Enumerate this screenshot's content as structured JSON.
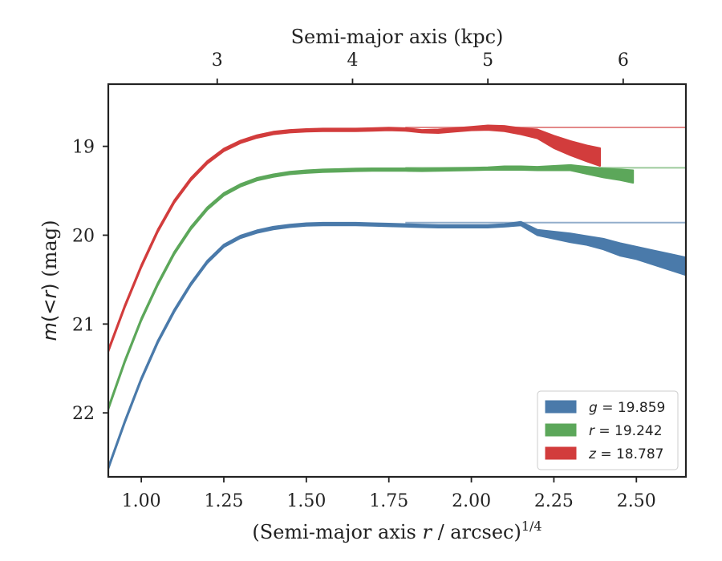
{
  "chart_data": {
    "type": "area",
    "xlabel_prefix": "(Semi-major axis ",
    "xlabel_var": "r",
    "xlabel_mid": " / arcsec)",
    "xlabel_sup": "1/4",
    "top_xlabel": "Semi-major axis (kpc)",
    "ylabel_var": "m",
    "ylabel_paren_open": "(<",
    "ylabel_var2": "r",
    "ylabel_paren_close": ")",
    "ylabel_unit": " (mag)",
    "xlim": [
      0.9,
      2.65
    ],
    "ylim": [
      22.72,
      18.3
    ],
    "y_inverted": true,
    "x_ticks": [
      "1.00",
      "1.25",
      "1.50",
      "1.75",
      "2.00",
      "2.25",
      "2.50"
    ],
    "x_tick_values": [
      1.0,
      1.25,
      1.5,
      1.75,
      2.0,
      2.25,
      2.5
    ],
    "y_ticks": [
      "19",
      "20",
      "21",
      "22"
    ],
    "y_tick_values": [
      19,
      20,
      21,
      22
    ],
    "top_ticks": [
      "3",
      "4",
      "5",
      "6"
    ],
    "top_tick_positions_x": [
      1.23,
      1.64,
      2.05,
      2.46
    ],
    "legend_position": "lower-right",
    "series": [
      {
        "band": "g",
        "value_text": "19.859",
        "color": "#4a7aaa",
        "total_mag": 19.859,
        "x": [
          0.9,
          0.95,
          1.0,
          1.05,
          1.1,
          1.15,
          1.2,
          1.25,
          1.3,
          1.35,
          1.4,
          1.45,
          1.5,
          1.55,
          1.6,
          1.65,
          1.7,
          1.75,
          1.8,
          1.85,
          1.9,
          1.95,
          2.0,
          2.05,
          2.1,
          2.15,
          2.2,
          2.25,
          2.3,
          2.35,
          2.4,
          2.45,
          2.5,
          2.55,
          2.6,
          2.65
        ],
        "y": [
          22.62,
          22.1,
          21.62,
          21.2,
          20.85,
          20.55,
          20.3,
          20.12,
          20.02,
          19.96,
          19.92,
          19.895,
          19.88,
          19.875,
          19.875,
          19.875,
          19.88,
          19.885,
          19.89,
          19.895,
          19.9,
          19.9,
          19.9,
          19.9,
          19.89,
          19.87,
          19.97,
          20.0,
          20.03,
          20.06,
          20.1,
          20.16,
          20.2,
          20.25,
          20.3,
          20.35
        ],
        "halfwidth": [
          0.015,
          0.015,
          0.015,
          0.015,
          0.015,
          0.015,
          0.015,
          0.015,
          0.015,
          0.015,
          0.015,
          0.015,
          0.015,
          0.015,
          0.015,
          0.015,
          0.015,
          0.015,
          0.015,
          0.015,
          0.015,
          0.015,
          0.015,
          0.015,
          0.015,
          0.02,
          0.03,
          0.04,
          0.05,
          0.05,
          0.06,
          0.07,
          0.07,
          0.08,
          0.09,
          0.1
        ]
      },
      {
        "band": "r",
        "value_text": "19.242",
        "color": "#5ca75a",
        "total_mag": 19.242,
        "x": [
          0.9,
          0.95,
          1.0,
          1.05,
          1.1,
          1.15,
          1.2,
          1.25,
          1.3,
          1.35,
          1.4,
          1.45,
          1.5,
          1.55,
          1.6,
          1.65,
          1.7,
          1.75,
          1.8,
          1.85,
          1.9,
          1.95,
          2.0,
          2.05,
          2.1,
          2.15,
          2.2,
          2.25,
          2.3,
          2.35,
          2.4,
          2.45,
          2.49
        ],
        "y": [
          21.95,
          21.42,
          20.95,
          20.55,
          20.2,
          19.92,
          19.7,
          19.54,
          19.44,
          19.37,
          19.33,
          19.3,
          19.285,
          19.275,
          19.27,
          19.265,
          19.262,
          19.262,
          19.262,
          19.265,
          19.262,
          19.258,
          19.255,
          19.25,
          19.245,
          19.245,
          19.25,
          19.245,
          19.24,
          19.27,
          19.3,
          19.32,
          19.34
        ],
        "halfwidth": [
          0.015,
          0.015,
          0.015,
          0.015,
          0.015,
          0.015,
          0.015,
          0.015,
          0.015,
          0.015,
          0.015,
          0.015,
          0.015,
          0.015,
          0.015,
          0.015,
          0.015,
          0.015,
          0.015,
          0.015,
          0.015,
          0.015,
          0.015,
          0.015,
          0.02,
          0.02,
          0.02,
          0.025,
          0.03,
          0.04,
          0.05,
          0.06,
          0.07
        ]
      },
      {
        "band": "z",
        "value_text": "18.787",
        "color": "#d23c3c",
        "total_mag": 18.787,
        "x": [
          0.9,
          0.95,
          1.0,
          1.05,
          1.1,
          1.15,
          1.2,
          1.25,
          1.3,
          1.35,
          1.4,
          1.45,
          1.5,
          1.55,
          1.6,
          1.65,
          1.7,
          1.75,
          1.8,
          1.85,
          1.9,
          1.95,
          2.0,
          2.05,
          2.1,
          2.15,
          2.2,
          2.25,
          2.3,
          2.35,
          2.39
        ],
        "y": [
          21.3,
          20.8,
          20.35,
          19.95,
          19.62,
          19.37,
          19.18,
          19.04,
          18.95,
          18.89,
          18.85,
          18.83,
          18.82,
          18.815,
          18.815,
          18.815,
          18.81,
          18.805,
          18.81,
          18.83,
          18.83,
          18.815,
          18.8,
          18.79,
          18.8,
          18.83,
          18.86,
          18.95,
          19.02,
          19.08,
          19.12
        ],
        "halfwidth": [
          0.015,
          0.015,
          0.015,
          0.015,
          0.015,
          0.015,
          0.015,
          0.015,
          0.015,
          0.015,
          0.015,
          0.015,
          0.015,
          0.015,
          0.015,
          0.015,
          0.015,
          0.015,
          0.015,
          0.015,
          0.02,
          0.02,
          0.02,
          0.025,
          0.03,
          0.035,
          0.05,
          0.07,
          0.08,
          0.09,
          0.1
        ]
      }
    ]
  }
}
